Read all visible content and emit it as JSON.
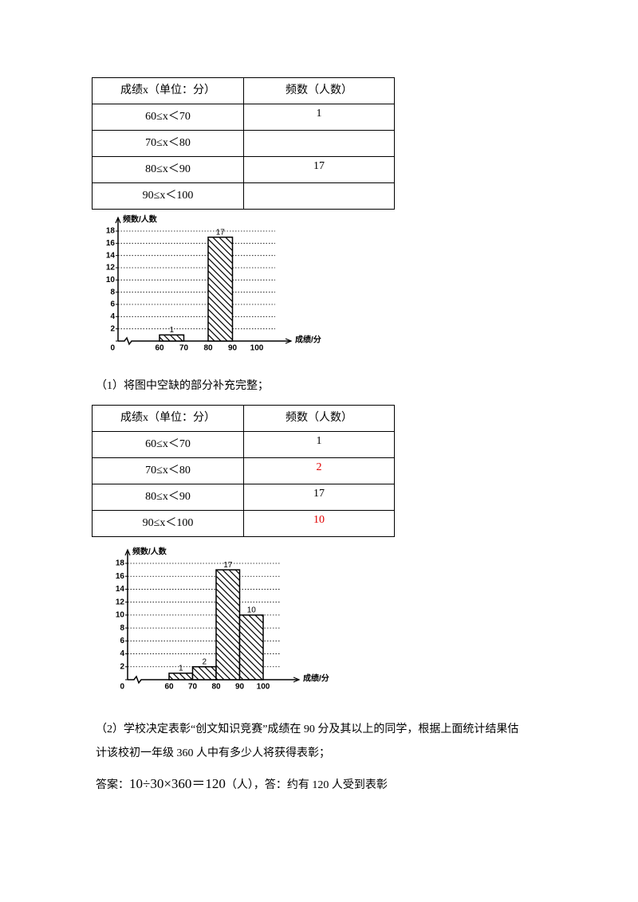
{
  "table1": {
    "header": [
      "成绩x（单位：分）",
      "频数（人数）"
    ],
    "rows": [
      [
        "60≤x＜70",
        "1"
      ],
      [
        "70≤x＜80",
        null
      ],
      [
        "80≤x＜90",
        "17"
      ],
      [
        "90≤x＜100",
        null
      ]
    ]
  },
  "chart1": {
    "type": "histogram",
    "y_label": "频数/人数",
    "x_label": "成绩/分",
    "bins": [
      60,
      70,
      80,
      90,
      100
    ],
    "counts": [
      1,
      null,
      17,
      null
    ],
    "xlim": [
      60,
      100
    ],
    "xticks": [
      60,
      70,
      80,
      90,
      100
    ],
    "ylim": [
      0,
      18
    ],
    "yticks": [
      0,
      2,
      4,
      6,
      8,
      10,
      12,
      14,
      16,
      18
    ],
    "grid": true,
    "color": "#000000"
  },
  "question1": "（1）将图中空缺的部分补充完整；",
  "table2": {
    "header": [
      "成绩x（单位：分）",
      "频数（人数）"
    ],
    "rows": [
      [
        "60≤x＜70",
        "1"
      ],
      [
        "70≤x＜80",
        {
          "text": "2",
          "color": "#e00000"
        }
      ],
      [
        "80≤x＜90",
        "17"
      ],
      [
        "90≤x＜100",
        {
          "text": "10",
          "color": "#e00000"
        }
      ]
    ]
  },
  "chart2": {
    "type": "histogram",
    "y_label": "频数/人数",
    "x_label": "成绩/分",
    "bins": [
      60,
      70,
      80,
      90,
      100
    ],
    "counts": [
      1,
      2,
      17,
      10
    ],
    "xlim": [
      60,
      100
    ],
    "xticks": [
      60,
      70,
      80,
      90,
      100
    ],
    "ylim": [
      0,
      18
    ],
    "yticks": [
      0,
      2,
      4,
      6,
      8,
      10,
      12,
      14,
      16,
      18
    ],
    "grid": true,
    "color": "#000000"
  },
  "question2": {
    "lines": [
      "（2）学校决定表彰“创文知识竞赛”成绩在 90 分及其以上的同学，根据上面统计结果估",
      "计该校初一年级 360 人中有多少人将获得表彰；"
    ]
  },
  "answer": {
    "label": "答案：",
    "formula": "10÷30×360＝120",
    "rest": "（人），答：约有 120 人受到表彰"
  }
}
